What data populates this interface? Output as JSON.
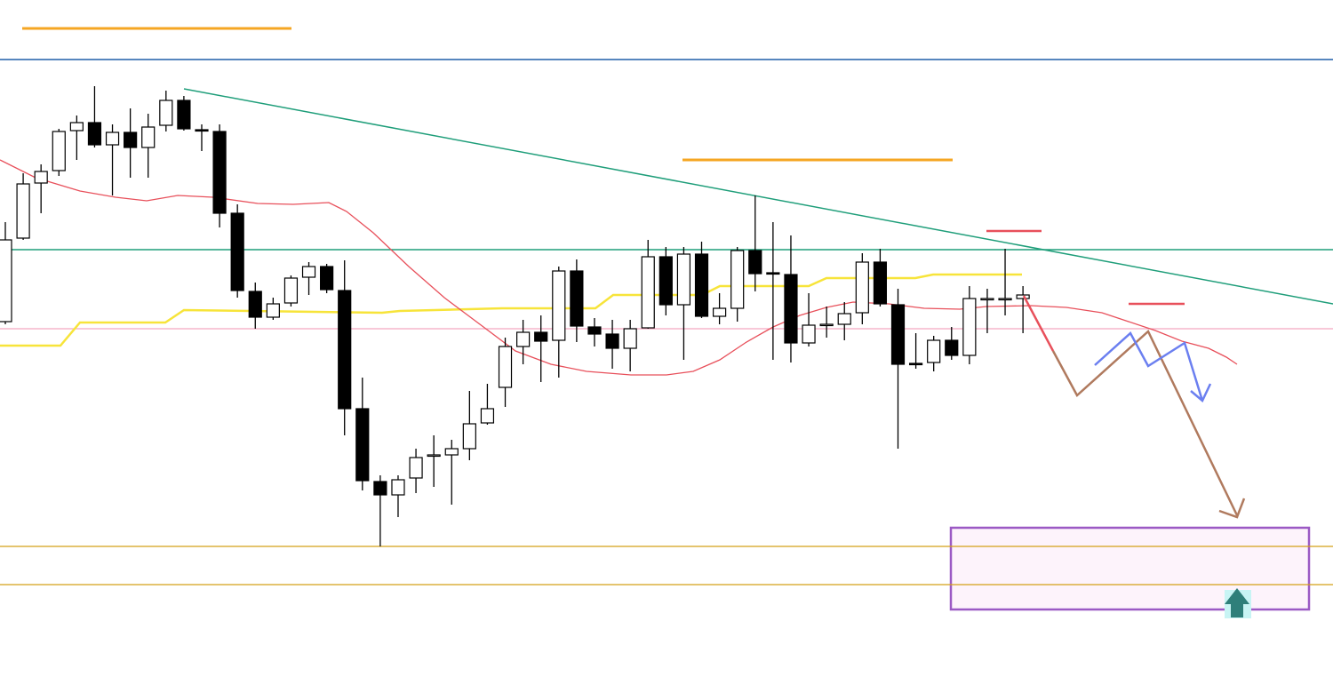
{
  "chart_data": {
    "type": "candlestick",
    "ylim": [
      0,
      780
    ],
    "up_color": "#ffffff",
    "down_color": "#000000",
    "open": [
      418,
      512,
      574,
      588,
      633,
      642,
      617,
      631,
      614,
      639,
      667,
      634,
      632,
      540,
      452,
      423,
      439,
      468,
      480,
      453,
      320,
      238,
      223,
      242,
      268,
      268,
      275,
      304,
      344,
      390,
      406,
      397,
      475,
      412,
      404,
      388,
      411,
      491,
      437,
      494,
      424,
      433,
      498,
      473,
      471,
      394,
      415,
      415,
      428,
      485,
      437,
      371,
      372,
      397,
      380,
      443,
      444,
      444
    ],
    "high": [
      530,
      585,
      595,
      635,
      650,
      683,
      640,
      658,
      652,
      678,
      672,
      640,
      640,
      550,
      462,
      445,
      470,
      485,
      483,
      487,
      355,
      245,
      245,
      275,
      290,
      285,
      340,
      348,
      400,
      420,
      425,
      480,
      488,
      422,
      420,
      420,
      510,
      502,
      502,
      508,
      450,
      502,
      560,
      530,
      515,
      450,
      435,
      440,
      495,
      500,
      455,
      405,
      402,
      412,
      458,
      455,
      500,
      458
    ],
    "low": [
      415,
      510,
      540,
      582,
      600,
      614,
      560,
      580,
      580,
      632,
      633,
      610,
      524,
      445,
      410,
      420,
      435,
      448,
      450,
      290,
      228,
      165,
      198,
      225,
      232,
      212,
      262,
      302,
      322,
      370,
      350,
      355,
      395,
      390,
      365,
      362,
      410,
      425,
      375,
      422,
      415,
      418,
      452,
      375,
      372,
      390,
      400,
      397,
      415,
      435,
      275,
      365,
      362,
      375,
      370,
      405,
      425,
      405
    ],
    "close": [
      510,
      573,
      587,
      632,
      642,
      617,
      631,
      614,
      637,
      667,
      635,
      633,
      540,
      453,
      423,
      438,
      467,
      480,
      454,
      320,
      239,
      223,
      240,
      265,
      268,
      275,
      303,
      320,
      390,
      406,
      396,
      475,
      413,
      404,
      388,
      410,
      491,
      437,
      494,
      424,
      433,
      498,
      472,
      472,
      394,
      414,
      415,
      427,
      485,
      438,
      370,
      370,
      397,
      380,
      444,
      444,
      444,
      448
    ]
  }
}
